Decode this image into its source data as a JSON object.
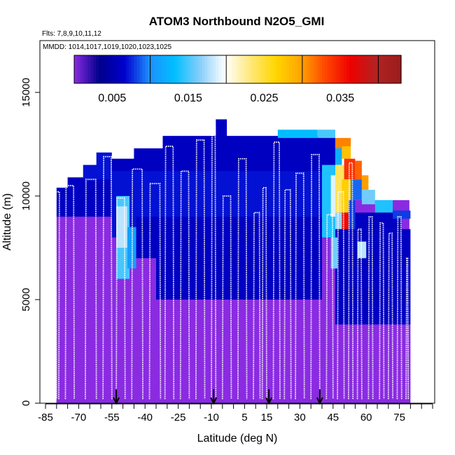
{
  "chart_data": {
    "type": "heatmap",
    "title": "ATOM3 Northbound N2O5_GMI",
    "flights_label": "Flts: 7,8,9,10,11,12",
    "mmdd_label": "MMDD: 1014,1017,1019,1020,1023,1025",
    "xlabel": "Latitude (deg N)",
    "ylabel": "Altitude (m)",
    "xlim": [
      -85,
      90
    ],
    "ylim": [
      0,
      17500
    ],
    "x_ticks": [
      -85,
      -70,
      -55,
      -40,
      -25,
      -10,
      5,
      15,
      30,
      45,
      60,
      75
    ],
    "x_ticks_minor": [
      -80,
      -75,
      -65,
      -60,
      -50,
      -45,
      -35,
      -30,
      -20,
      -15,
      -5,
      0,
      10,
      20,
      25,
      35,
      40,
      50,
      55,
      65,
      70,
      80,
      85,
      90
    ],
    "y_ticks": [
      0,
      5000,
      10000,
      15000
    ],
    "colorbar": {
      "range": [
        0,
        0.043
      ],
      "ticks": [
        "0.005",
        "0.015",
        "0.025",
        "0.035"
      ],
      "tick_values": [
        0.005,
        0.015,
        0.025,
        0.035
      ],
      "divisions": [
        0.01,
        0.02,
        0.03,
        0.04
      ],
      "colors": [
        "#8a2be2",
        "#00008b",
        "#0000cd",
        "#1e90ff",
        "#00bfff",
        "#87cefa",
        "#ffffff",
        "#ffe87c",
        "#ffd700",
        "#ffa500",
        "#ff4500",
        "#ee0000",
        "#b22222",
        "#9b1c1c"
      ]
    },
    "colors": {
      "background": "#8a2be2",
      "upper": "#1a0fb0",
      "profile_line": "#ffffff"
    },
    "flight_markers_lat": [
      -53,
      -9,
      16,
      39
    ],
    "upper_cells": [
      {
        "lat0": -80,
        "lat1": -55,
        "alt0": 9000,
        "alt1": 10400,
        "v": 0.006
      },
      {
        "lat0": -75,
        "lat1": -55,
        "alt0": 10300,
        "alt1": 10900,
        "v": 0.006
      },
      {
        "lat0": -68,
        "lat1": -55,
        "alt0": 10800,
        "alt1": 11500,
        "v": 0.007
      },
      {
        "lat0": -62,
        "lat1": -55,
        "alt0": 11400,
        "alt1": 12100,
        "v": 0.007
      },
      {
        "lat0": -55,
        "lat1": 46,
        "alt0": 8000,
        "alt1": 11300,
        "v": 0.007
      },
      {
        "lat0": -55,
        "lat1": 46,
        "alt0": 11200,
        "alt1": 11800,
        "v": 0.006
      },
      {
        "lat0": -45,
        "lat1": 46,
        "alt0": 11700,
        "alt1": 12300,
        "v": 0.006
      },
      {
        "lat0": -32,
        "lat1": 46,
        "alt0": 12200,
        "alt1": 12900,
        "v": 0.006
      },
      {
        "lat0": -8,
        "lat1": -3,
        "alt0": 12800,
        "alt1": 13700,
        "v": 0.006
      },
      {
        "lat0": 20,
        "lat1": 38,
        "alt0": 12800,
        "alt1": 13200,
        "v": 0.013
      },
      {
        "lat0": 38,
        "lat1": 46,
        "alt0": 12800,
        "alt1": 13200,
        "v": 0.015
      },
      {
        "lat0": -53,
        "lat1": -47,
        "alt0": 6000,
        "alt1": 10000,
        "v": 0.015
      },
      {
        "lat0": -53,
        "lat1": -48,
        "alt0": 7500,
        "alt1": 9500,
        "v": 0.018
      },
      {
        "lat0": -48,
        "lat1": -44,
        "alt0": 6500,
        "alt1": 8500,
        "v": 0.011
      },
      {
        "lat0": -44,
        "lat1": -35,
        "alt0": 7000,
        "alt1": 9000,
        "v": 0.006
      },
      {
        "lat0": -35,
        "lat1": 40,
        "alt0": 5000,
        "alt1": 9000,
        "v": 0.006
      },
      {
        "lat0": 40,
        "lat1": 46,
        "alt0": 8000,
        "alt1": 11500,
        "v": 0.014
      },
      {
        "lat0": 44,
        "lat1": 47,
        "alt0": 9000,
        "alt1": 11000,
        "v": 0.019
      },
      {
        "lat0": 46,
        "lat1": 49,
        "alt0": 11500,
        "alt1": 12400,
        "v": 0.012
      },
      {
        "lat0": 46,
        "lat1": 53,
        "alt0": 12300,
        "alt1": 12800,
        "v": 0.031
      },
      {
        "lat0": 49,
        "lat1": 53,
        "alt0": 11800,
        "alt1": 12400,
        "v": 0.028
      },
      {
        "lat0": 46,
        "lat1": 50,
        "alt0": 10400,
        "alt1": 11500,
        "v": 0.024
      },
      {
        "lat0": 50,
        "lat1": 55,
        "alt0": 10800,
        "alt1": 11800,
        "v": 0.034
      },
      {
        "lat0": 55,
        "lat1": 58,
        "alt0": 10800,
        "alt1": 11700,
        "v": 0.032
      },
      {
        "lat0": 58,
        "lat1": 61,
        "alt0": 10300,
        "alt1": 11000,
        "v": 0.03
      },
      {
        "lat0": 46,
        "lat1": 49,
        "alt0": 9200,
        "alt1": 10400,
        "v": 0.024
      },
      {
        "lat0": 49,
        "lat1": 53,
        "alt0": 9200,
        "alt1": 10800,
        "v": 0.027
      },
      {
        "lat0": 53,
        "lat1": 58,
        "alt0": 9800,
        "alt1": 10800,
        "v": 0.009
      },
      {
        "lat0": 58,
        "lat1": 64,
        "alt0": 9600,
        "alt1": 10300,
        "v": 0.016
      },
      {
        "lat0": 64,
        "lat1": 72,
        "alt0": 9200,
        "alt1": 9800,
        "v": 0.014
      },
      {
        "lat0": 46,
        "lat1": 49,
        "alt0": 8000,
        "alt1": 9200,
        "v": 0.017
      },
      {
        "lat0": 49,
        "lat1": 52,
        "alt0": 8000,
        "alt1": 9200,
        "v": 0.036
      },
      {
        "lat0": 52,
        "lat1": 55,
        "alt0": 8000,
        "alt1": 9800,
        "v": 0.008
      },
      {
        "lat0": 55,
        "lat1": 76,
        "alt0": 8400,
        "alt1": 9200,
        "v": 0.006
      },
      {
        "lat0": 72,
        "lat1": 80,
        "alt0": 8900,
        "alt1": 9300,
        "v": 0.008
      },
      {
        "lat0": 46,
        "lat1": 80,
        "alt0": 3800,
        "alt1": 8400,
        "v": 0.006
      },
      {
        "lat0": 44,
        "lat1": 47,
        "alt0": 6500,
        "alt1": 8000,
        "v": 0.016
      },
      {
        "lat0": 56,
        "lat1": 60,
        "alt0": 7000,
        "alt1": 7800,
        "v": 0.018
      }
    ],
    "profiles": [
      {
        "lat0": -79,
        "lat1": -80,
        "top": 10200
      },
      {
        "lat0": -76,
        "lat1": -72,
        "top": 10500
      },
      {
        "lat0": -67,
        "lat1": -62,
        "top": 10800
      },
      {
        "lat0": -59,
        "lat1": -55,
        "top": 11900
      },
      {
        "lat0": -53,
        "lat1": -49,
        "top": 9900
      },
      {
        "lat0": -46,
        "lat1": -41,
        "top": 11300
      },
      {
        "lat0": -38,
        "lat1": -33,
        "top": 10600
      },
      {
        "lat0": -31,
        "lat1": -27,
        "top": 12400
      },
      {
        "lat0": -24,
        "lat1": -20,
        "top": 11200
      },
      {
        "lat0": -17,
        "lat1": -13,
        "top": 12700
      },
      {
        "lat0": -10,
        "lat1": -8,
        "top": 13300
      },
      {
        "lat0": -5,
        "lat1": -1,
        "top": 10000
      },
      {
        "lat0": 2,
        "lat1": 6,
        "top": 11800
      },
      {
        "lat0": 9,
        "lat1": 12,
        "top": 9200
      },
      {
        "lat0": 13,
        "lat1": 15,
        "top": 10400
      },
      {
        "lat0": 18,
        "lat1": 21,
        "top": 12600
      },
      {
        "lat0": 23,
        "lat1": 26,
        "top": 10300
      },
      {
        "lat0": 28,
        "lat1": 32,
        "top": 11100
      },
      {
        "lat0": 35,
        "lat1": 39,
        "top": 12000
      },
      {
        "lat0": 42,
        "lat1": 45,
        "top": 9100
      },
      {
        "lat0": 47,
        "lat1": 50,
        "top": 10200
      },
      {
        "lat0": 52,
        "lat1": 54,
        "top": 11600
      },
      {
        "lat0": 56,
        "lat1": 58,
        "top": 8400
      },
      {
        "lat0": 61,
        "lat1": 63,
        "top": 9000
      },
      {
        "lat0": 66,
        "lat1": 68,
        "top": 8700
      },
      {
        "lat0": 70,
        "lat1": 72,
        "top": 8200
      },
      {
        "lat0": 74,
        "lat1": 76,
        "top": 9000
      },
      {
        "lat0": 78,
        "lat1": 79,
        "top": 7000
      }
    ]
  }
}
